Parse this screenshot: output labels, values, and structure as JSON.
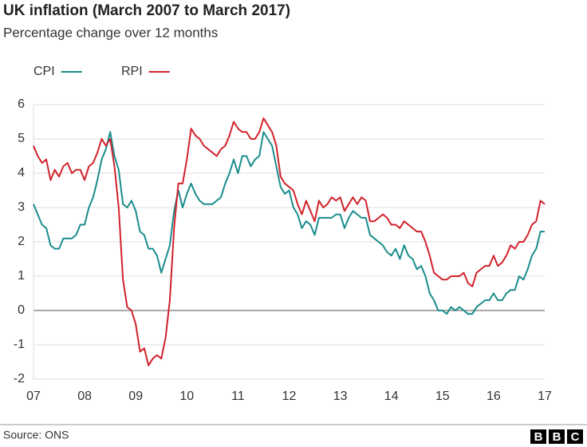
{
  "chart_data": {
    "type": "line",
    "title": "UK inflation (March 2007 to March 2017)",
    "subtitle": "Percentage change over 12 months",
    "source": "Source: ONS",
    "logo": [
      "B",
      "B",
      "C"
    ],
    "categories": [
      "07",
      null,
      null,
      null,
      null,
      null,
      null,
      null,
      null,
      null,
      null,
      null,
      "08",
      null,
      null,
      null,
      null,
      null,
      null,
      null,
      null,
      null,
      null,
      null,
      "09",
      null,
      null,
      null,
      null,
      null,
      null,
      null,
      null,
      null,
      null,
      null,
      "10",
      null,
      null,
      null,
      null,
      null,
      null,
      null,
      null,
      null,
      null,
      null,
      "11",
      null,
      null,
      null,
      null,
      null,
      null,
      null,
      null,
      null,
      null,
      null,
      "12",
      null,
      null,
      null,
      null,
      null,
      null,
      null,
      null,
      null,
      null,
      null,
      "13",
      null,
      null,
      null,
      null,
      null,
      null,
      null,
      null,
      null,
      null,
      null,
      "14",
      null,
      null,
      null,
      null,
      null,
      null,
      null,
      null,
      null,
      null,
      null,
      "15",
      null,
      null,
      null,
      null,
      null,
      null,
      null,
      null,
      null,
      null,
      null,
      "16",
      null,
      null,
      null,
      null,
      null,
      null,
      null,
      null,
      null,
      null,
      null,
      "17"
    ],
    "series": [
      {
        "name": "CPI",
        "color": "#1b8c8c",
        "values": [
          3.1,
          2.8,
          2.5,
          2.4,
          1.9,
          1.8,
          1.8,
          2.1,
          2.1,
          2.1,
          2.2,
          2.5,
          2.5,
          3.0,
          3.3,
          3.8,
          4.4,
          4.7,
          5.2,
          4.5,
          4.1,
          3.1,
          3.0,
          3.2,
          2.9,
          2.3,
          2.2,
          1.8,
          1.8,
          1.6,
          1.1,
          1.5,
          1.9,
          2.9,
          3.5,
          3.0,
          3.4,
          3.7,
          3.4,
          3.2,
          3.1,
          3.1,
          3.1,
          3.2,
          3.3,
          3.7,
          4.0,
          4.4,
          4.0,
          4.5,
          4.5,
          4.2,
          4.4,
          4.5,
          5.2,
          5.0,
          4.8,
          4.2,
          3.6,
          3.4,
          3.5,
          3.0,
          2.8,
          2.4,
          2.6,
          2.5,
          2.2,
          2.7,
          2.7,
          2.7,
          2.7,
          2.8,
          2.8,
          2.4,
          2.7,
          2.9,
          2.8,
          2.7,
          2.7,
          2.2,
          2.1,
          2.0,
          1.9,
          1.7,
          1.6,
          1.8,
          1.5,
          1.9,
          1.6,
          1.5,
          1.2,
          1.3,
          1.0,
          0.5,
          0.3,
          0.0,
          0.0,
          -0.1,
          0.1,
          0.0,
          0.1,
          0.0,
          -0.1,
          -0.1,
          0.1,
          0.2,
          0.3,
          0.3,
          0.5,
          0.3,
          0.3,
          0.5,
          0.6,
          0.6,
          1.0,
          0.9,
          1.2,
          1.6,
          1.8,
          2.3,
          2.3
        ]
      },
      {
        "name": "RPI",
        "color": "#d1222b",
        "values": [
          4.8,
          4.5,
          4.3,
          4.4,
          3.8,
          4.1,
          3.9,
          4.2,
          4.3,
          4.0,
          4.1,
          4.1,
          3.8,
          4.2,
          4.3,
          4.6,
          5.0,
          4.8,
          5.0,
          4.2,
          3.0,
          0.9,
          0.1,
          0.0,
          -0.4,
          -1.2,
          -1.1,
          -1.6,
          -1.4,
          -1.3,
          -1.4,
          -0.8,
          0.3,
          2.4,
          3.7,
          3.7,
          4.4,
          5.3,
          5.1,
          5.0,
          4.8,
          4.7,
          4.6,
          4.5,
          4.7,
          4.8,
          5.1,
          5.5,
          5.3,
          5.2,
          5.2,
          5.0,
          5.0,
          5.2,
          5.6,
          5.4,
          5.2,
          4.8,
          3.9,
          3.7,
          3.6,
          3.5,
          3.1,
          2.8,
          3.2,
          2.9,
          2.6,
          3.2,
          3.0,
          3.1,
          3.3,
          3.2,
          3.3,
          2.9,
          3.1,
          3.3,
          3.1,
          3.3,
          3.2,
          2.6,
          2.6,
          2.7,
          2.8,
          2.7,
          2.5,
          2.5,
          2.4,
          2.6,
          2.5,
          2.4,
          2.3,
          2.3,
          2.0,
          1.6,
          1.1,
          1.0,
          0.9,
          0.9,
          1.0,
          1.0,
          1.0,
          1.1,
          0.8,
          0.7,
          1.1,
          1.2,
          1.3,
          1.3,
          1.6,
          1.3,
          1.4,
          1.6,
          1.9,
          1.8,
          2.0,
          2.0,
          2.2,
          2.5,
          2.6,
          3.2,
          3.1
        ]
      }
    ],
    "ylim": [
      -2,
      6
    ],
    "yticks": [
      -2,
      -1,
      0,
      1,
      2,
      3,
      4,
      5,
      6
    ],
    "grid": true,
    "legend": "top-left"
  }
}
